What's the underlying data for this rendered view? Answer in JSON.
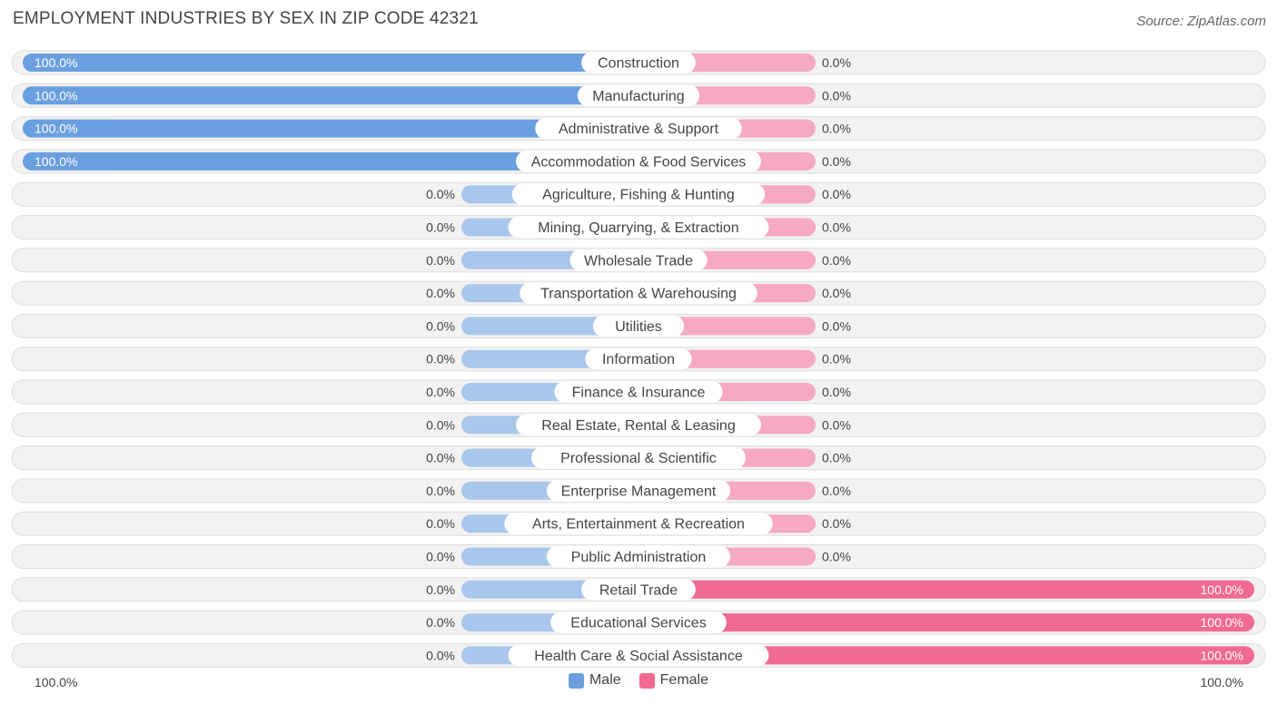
{
  "title": "EMPLOYMENT INDUSTRIES BY SEX IN ZIP CODE 42321",
  "source": "Source: ZipAtlas.com",
  "colors": {
    "male_full": "#6a9fdf",
    "male_light": "#a9c7ec",
    "female_full": "#f06a93",
    "female_light": "#f6a9c2",
    "row_bg": "#f2f2f2",
    "row_border": "#dddddd"
  },
  "legend": {
    "male_label": "Male",
    "female_label": "Female"
  },
  "axis": {
    "left_label": "100.0%",
    "right_label": "100.0%"
  },
  "chart_data": {
    "type": "bar",
    "orientation": "horizontal-diverging",
    "categories": [
      "Construction",
      "Manufacturing",
      "Administrative & Support",
      "Accommodation & Food Services",
      "Agriculture, Fishing & Hunting",
      "Mining, Quarrying, & Extraction",
      "Wholesale Trade",
      "Transportation & Warehousing",
      "Utilities",
      "Information",
      "Finance & Insurance",
      "Real Estate, Rental & Leasing",
      "Professional & Scientific",
      "Enterprise Management",
      "Arts, Entertainment & Recreation",
      "Public Administration",
      "Retail Trade",
      "Educational Services",
      "Health Care & Social Assistance"
    ],
    "series": [
      {
        "name": "Male",
        "values": [
          100,
          100,
          100,
          100,
          0,
          0,
          0,
          0,
          0,
          0,
          0,
          0,
          0,
          0,
          0,
          0,
          0,
          0,
          0
        ],
        "labels": [
          "100.0%",
          "100.0%",
          "100.0%",
          "100.0%",
          "0.0%",
          "0.0%",
          "0.0%",
          "0.0%",
          "0.0%",
          "0.0%",
          "0.0%",
          "0.0%",
          "0.0%",
          "0.0%",
          "0.0%",
          "0.0%",
          "0.0%",
          "0.0%",
          "0.0%"
        ]
      },
      {
        "name": "Female",
        "values": [
          0,
          0,
          0,
          0,
          0,
          0,
          0,
          0,
          0,
          0,
          0,
          0,
          0,
          0,
          0,
          0,
          100,
          100,
          100
        ],
        "labels": [
          "0.0%",
          "0.0%",
          "0.0%",
          "0.0%",
          "0.0%",
          "0.0%",
          "0.0%",
          "0.0%",
          "0.0%",
          "0.0%",
          "0.0%",
          "0.0%",
          "0.0%",
          "0.0%",
          "0.0%",
          "0.0%",
          "100.0%",
          "100.0%",
          "100.0%"
        ]
      }
    ],
    "xlim": [
      -100,
      100
    ],
    "legend_position": "bottom-center",
    "grid": false
  }
}
